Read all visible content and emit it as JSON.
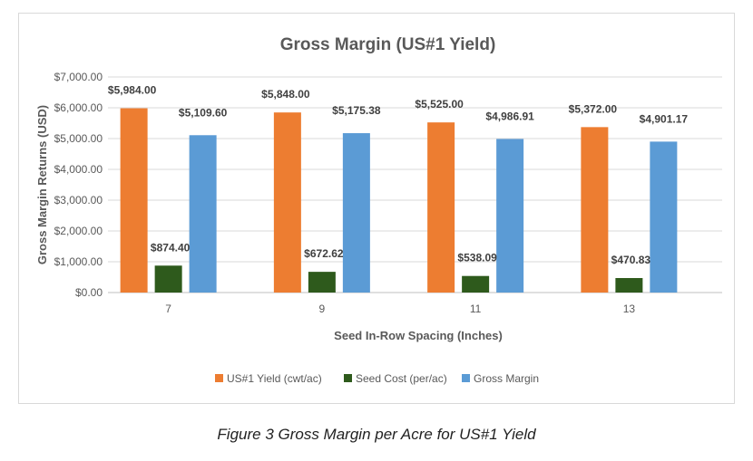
{
  "chart_data": {
    "type": "bar",
    "title": "Gross Margin (US#1 Yield)",
    "xlabel": "Seed In-Row Spacing (Inches)",
    "ylabel": "Gross Margin Returns (USD)",
    "categories": [
      "7",
      "9",
      "11",
      "13"
    ],
    "series": [
      {
        "name": "US#1 Yield (cwt/ac)",
        "color": "#ED7D31",
        "values": [
          5984.0,
          5848.0,
          5525.0,
          5372.0
        ],
        "labels": [
          "$5,984.00",
          "$5,848.00",
          "$5,525.00",
          "$5,372.00"
        ]
      },
      {
        "name": "Seed Cost (per/ac)",
        "color": "#2E5A1C",
        "values": [
          874.4,
          672.62,
          538.09,
          470.83
        ],
        "labels": [
          "$874.40",
          "$672.62",
          "$538.09",
          "$470.83"
        ]
      },
      {
        "name": "Gross Margin",
        "color": "#5B9BD5",
        "values": [
          5109.6,
          5175.38,
          4986.91,
          4901.17
        ],
        "labels": [
          "$5,109.60",
          "$5,175.38",
          "$4,986.91",
          "$4,901.17"
        ]
      }
    ],
    "ylim": [
      0,
      7000
    ],
    "yticks": [
      0,
      1000,
      2000,
      3000,
      4000,
      5000,
      6000,
      7000
    ],
    "ytick_labels": [
      "$0.00",
      "$1,000.00",
      "$2,000.00",
      "$3,000.00",
      "$4,000.00",
      "$5,000.00",
      "$6,000.00",
      "$7,000.00"
    ],
    "grid": true,
    "legend": "bottom"
  },
  "caption": "Figure 3 Gross Margin per Acre for US#1 Yield"
}
